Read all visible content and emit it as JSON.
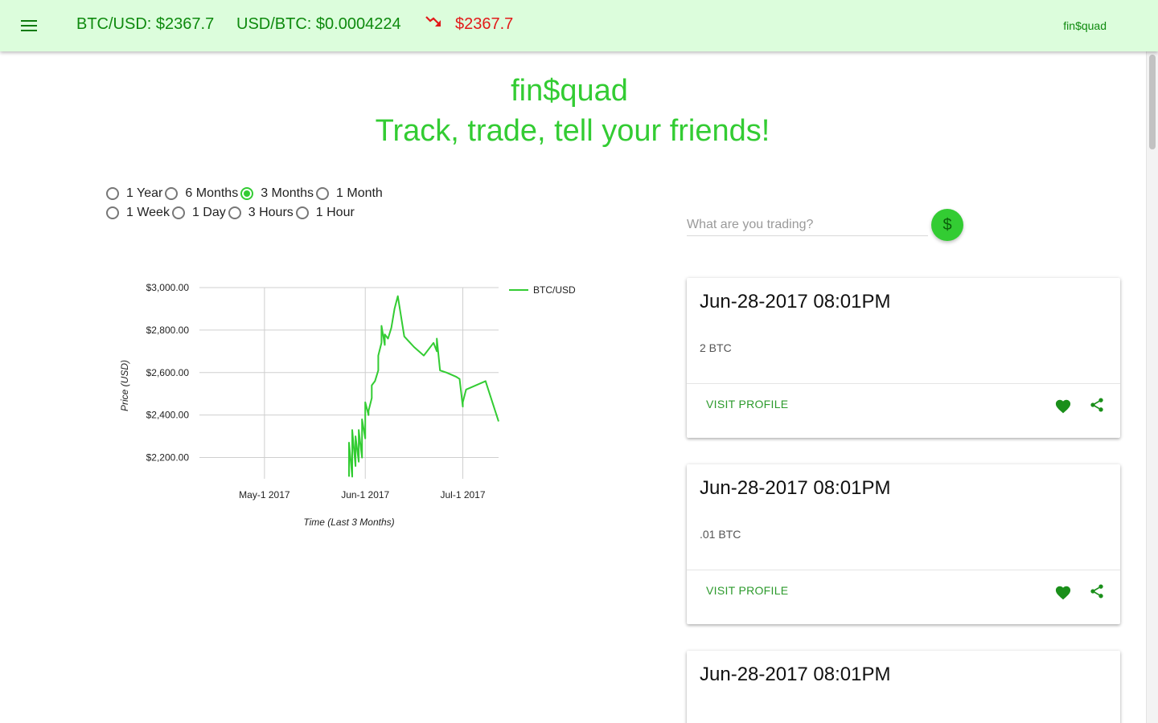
{
  "appbar": {
    "menu_icon": "hamburger-menu-icon",
    "btc_usd": "BTC/USD: $2367.7",
    "usd_btc": "USD/BTC: $0.0004224",
    "trend_icon": "trending-down-icon",
    "trend_color": "#e21a1a",
    "current_price": "$2367.7",
    "brand": "fin$quad"
  },
  "hero": {
    "title": "fin$quad",
    "tagline": "Track, trade, tell your friends!"
  },
  "range_options": [
    {
      "label": "1 Year",
      "checked": false
    },
    {
      "label": "6 Months",
      "checked": false
    },
    {
      "label": "3 Months",
      "checked": true
    },
    {
      "label": "1 Month",
      "checked": false
    },
    {
      "label": "1 Week",
      "checked": false
    },
    {
      "label": "1 Day",
      "checked": false
    },
    {
      "label": "3 Hours",
      "checked": false
    },
    {
      "label": "1 Hour",
      "checked": false
    }
  ],
  "search": {
    "placeholder": "What are you trading?",
    "button_icon": "dollar-icon",
    "button_symbol": "$"
  },
  "cards": [
    {
      "date": "Jun-28-2017 08:01PM",
      "amount": "2 BTC",
      "action": "VISIT PROFILE",
      "like_icon": "heart-icon",
      "share_icon": "share-icon"
    },
    {
      "date": "Jun-28-2017 08:01PM",
      "amount": ".01 BTC",
      "action": "VISIT PROFILE",
      "like_icon": "heart-icon",
      "share_icon": "share-icon"
    },
    {
      "date": "Jun-28-2017 08:01PM",
      "amount": "",
      "action": "",
      "like_icon": "",
      "share_icon": ""
    }
  ],
  "colors": {
    "appbar_bg": "#dcfddc",
    "accent": "#33cc33",
    "dark_green": "#0e8a0e",
    "down_red": "#e21a1a"
  },
  "chart_data": {
    "type": "line",
    "xlabel": "Time (Last 3 Months)",
    "ylabel": "Price (USD)",
    "legend_position": "top-right",
    "grid": true,
    "x_ticks": [
      "May-1 2017",
      "Jun-1 2017",
      "Jul-1 2017"
    ],
    "x_tick_values": [
      "2017-05-01",
      "2017-06-01",
      "2017-07-01"
    ],
    "xlim": [
      "2017-04-11",
      "2017-07-12"
    ],
    "y_ticks": [
      "$2,200.00",
      "$2,400.00",
      "$2,600.00",
      "$2,800.00",
      "$3,000.00"
    ],
    "y_tick_values": [
      2200,
      2400,
      2600,
      2800,
      3000
    ],
    "ylim": [
      2100,
      3000
    ],
    "series": [
      {
        "name": "BTC/USD",
        "color": "#33cc33",
        "x": [
          "2017-05-27",
          "2017-05-27",
          "2017-05-28",
          "2017-05-28",
          "2017-05-29",
          "2017-05-29",
          "2017-05-30",
          "2017-05-30",
          "2017-05-31",
          "2017-05-31",
          "2017-06-01",
          "2017-06-01",
          "2017-06-02",
          "2017-06-02",
          "2017-06-03",
          "2017-06-03",
          "2017-06-04",
          "2017-06-05",
          "2017-06-05",
          "2017-06-06",
          "2017-06-06",
          "2017-06-07",
          "2017-06-07",
          "2017-06-08",
          "2017-06-09",
          "2017-06-10",
          "2017-06-11",
          "2017-06-13",
          "2017-06-16",
          "2017-06-19",
          "2017-06-22",
          "2017-06-23",
          "2017-06-23",
          "2017-06-24",
          "2017-06-25",
          "2017-06-26",
          "2017-06-29",
          "2017-06-30",
          "2017-07-01",
          "2017-07-01",
          "2017-07-02",
          "2017-07-08",
          "2017-07-12"
        ],
        "y": [
          2110,
          2270,
          2110,
          2330,
          2160,
          2300,
          2180,
          2330,
          2200,
          2380,
          2290,
          2460,
          2400,
          2420,
          2480,
          2540,
          2560,
          2610,
          2680,
          2740,
          2820,
          2730,
          2780,
          2760,
          2810,
          2900,
          2960,
          2770,
          2720,
          2680,
          2740,
          2700,
          2760,
          2610,
          2605,
          2600,
          2580,
          2570,
          2440,
          2460,
          2520,
          2560,
          2370
        ]
      }
    ]
  }
}
